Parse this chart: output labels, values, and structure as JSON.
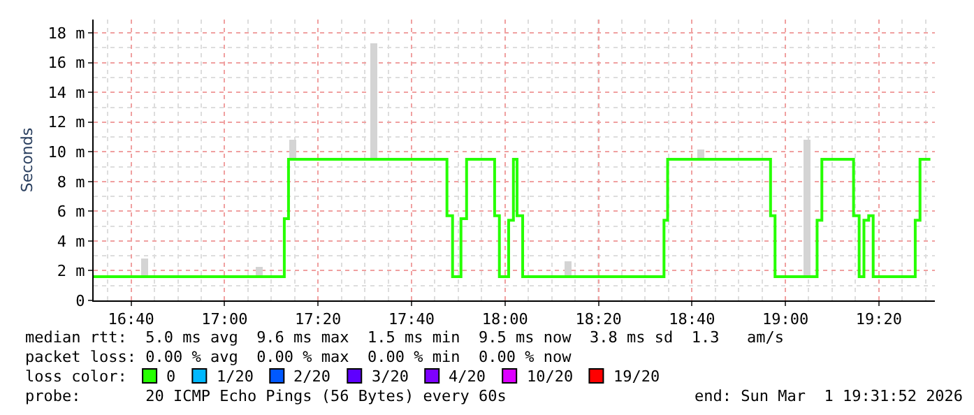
{
  "chart_data": {
    "type": "step",
    "ylabel": "Seconds",
    "xlim": [
      16.533,
      19.533
    ],
    "xticks": [
      {
        "value": 16.6667,
        "label": "16:40"
      },
      {
        "value": 17.0,
        "label": "17:00"
      },
      {
        "value": 17.3333,
        "label": "17:20"
      },
      {
        "value": 17.6667,
        "label": "17:40"
      },
      {
        "value": 18.0,
        "label": "18:00"
      },
      {
        "value": 18.3333,
        "label": "18:20"
      },
      {
        "value": 18.6667,
        "label": "18:40"
      },
      {
        "value": 19.0,
        "label": "19:00"
      },
      {
        "value": 19.3333,
        "label": "19:20"
      }
    ],
    "ylim": [
      0,
      18.9
    ],
    "yticks": [
      0,
      {
        "value": 2,
        "label": "2 m"
      },
      {
        "value": 4,
        "label": "4 m"
      },
      {
        "value": 6,
        "label": "6 m"
      },
      {
        "value": 8,
        "label": "8 m"
      },
      {
        "value": 10,
        "label": "10 m"
      },
      {
        "value": 12,
        "label": "12 m"
      },
      {
        "value": 14,
        "label": "14 m"
      },
      {
        "value": 16,
        "label": "16 m"
      },
      {
        "value": 18,
        "label": "18 m"
      }
    ],
    "grid": true,
    "legend": "bottom",
    "legend_title": "loss color:",
    "series": [
      {
        "type": "bar",
        "color": "#d4d4d4",
        "x": [
          16.717,
          17.125,
          17.242,
          17.53,
          18.227,
          18.7,
          19.077
        ],
        "base": [
          1.6,
          1.6,
          9.5,
          9.5,
          1.6,
          9.5,
          1.6
        ],
        "values": [
          1.2,
          0.7,
          1.3,
          7.8,
          1.0,
          0.7,
          9.2
        ]
      },
      {
        "name": "0",
        "color": "#26ff00",
        "x": [
          16.533,
          17.213,
          17.228,
          17.793,
          17.813,
          17.843,
          17.863,
          17.963,
          17.98,
          18.013,
          18.03,
          18.043,
          18.063,
          18.567,
          18.58,
          18.947,
          18.963,
          19.113,
          19.13,
          19.243,
          19.263,
          19.28,
          19.297,
          19.313,
          19.463,
          19.48,
          19.517
        ],
        "values": [
          1.6,
          5.5,
          9.5,
          5.7,
          1.6,
          5.5,
          9.5,
          5.7,
          1.6,
          5.4,
          9.5,
          5.7,
          1.6,
          5.4,
          9.5,
          5.7,
          1.6,
          5.4,
          9.5,
          5.7,
          1.6,
          5.4,
          5.7,
          1.6,
          5.4,
          9.5,
          9.5
        ]
      },
      {
        "name": "1/20",
        "color": "#00b8ff"
      },
      {
        "name": "2/20",
        "color": "#0059ff"
      },
      {
        "name": "3/20",
        "color": "#5e00ff"
      },
      {
        "name": "4/20",
        "color": "#7e00ff"
      },
      {
        "name": "10/20",
        "color": "#dd00ff"
      },
      {
        "name": "19/20",
        "color": "#ff0000"
      }
    ],
    "annotations": [
      "median rtt:  5.0 ms avg  9.6 ms max  1.5 ms min  9.5 ms now  3.8 ms sd  1.3   am/s",
      "packet loss: 0.00 % avg  0.00 % max  0.00 % min  0.00 % now",
      "probe:       20 ICMP Echo Pings (56 Bytes) every 60s",
      "end: Sun Mar  1 19:31:52 2026"
    ]
  }
}
